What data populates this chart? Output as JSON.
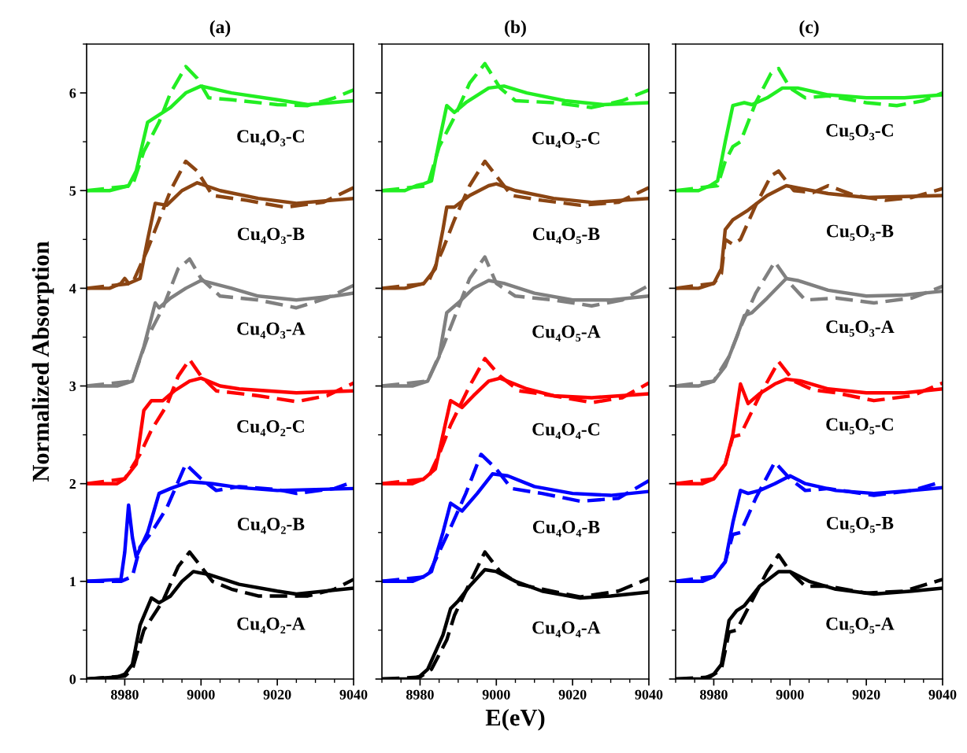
{
  "chart_data": [
    {
      "type": "line",
      "title": "(a)",
      "ylabel": "Normalized Absorption",
      "xlim": [
        8970,
        9040
      ],
      "xticks": [
        8980,
        9000,
        9020,
        9040
      ],
      "ylim": [
        0,
        6.5
      ],
      "yticks": [
        0,
        1,
        2,
        3,
        4,
        5,
        6
      ],
      "grid": false,
      "legend": false,
      "series": [
        {
          "name": "Cu₄O₂-A",
          "color": "#000000",
          "line_style": "solid",
          "x": [
            8970,
            8978,
            8980,
            8982,
            8984,
            8987,
            8989,
            8992,
            8995,
            8998,
            9002,
            9010,
            9020,
            9025,
            9040
          ],
          "values": [
            0,
            0.02,
            0.05,
            0.15,
            0.55,
            0.83,
            0.78,
            0.85,
            1.0,
            1.1,
            1.07,
            0.97,
            0.9,
            0.87,
            0.93
          ]
        },
        {
          "color": "#000000",
          "line_style": "dashed",
          "x": [
            8970,
            8980,
            8982,
            8985,
            8990,
            8994,
            8997,
            9000,
            9003,
            9008,
            9015,
            9028,
            9035,
            9040
          ],
          "values": [
            0,
            0.03,
            0.1,
            0.5,
            0.8,
            1.15,
            1.3,
            1.15,
            1.0,
            0.92,
            0.85,
            0.85,
            0.92,
            1.02
          ]
        },
        {
          "name": "Cu₄O₂-B",
          "color": "#0000ff",
          "line_style": "solid",
          "x": [
            8970,
            8979,
            8980,
            8981,
            8982,
            8983,
            8986,
            8989,
            8992,
            8997,
            9003,
            9010,
            9020,
            9040
          ],
          "values": [
            1,
            1.02,
            1.3,
            1.78,
            1.45,
            1.25,
            1.5,
            1.9,
            1.95,
            2.02,
            2.0,
            1.96,
            1.93,
            1.95
          ]
        },
        {
          "color": "#0000ff",
          "line_style": "dashed",
          "x": [
            8970,
            8979,
            8982,
            8984,
            8987,
            8991,
            8996,
            9000,
            9004,
            9010,
            9020,
            9025,
            9035,
            9040
          ],
          "values": [
            1,
            1.0,
            1.05,
            1.35,
            1.5,
            1.75,
            2.2,
            2.05,
            1.93,
            1.97,
            1.94,
            1.9,
            1.95,
            2.02
          ]
        },
        {
          "name": "Cu₄O₂-C",
          "color": "#ff0000",
          "line_style": "solid",
          "x": [
            8970,
            8978,
            8980,
            8983,
            8985,
            8987,
            8990,
            8993,
            8997,
            9000,
            9005,
            9010,
            9025,
            9040
          ],
          "values": [
            2,
            2.0,
            2.05,
            2.2,
            2.75,
            2.85,
            2.85,
            2.95,
            3.05,
            3.08,
            3.0,
            2.97,
            2.93,
            2.95
          ]
        },
        {
          "color": "#ff0000",
          "line_style": "dashed",
          "x": [
            8970,
            8980,
            8984,
            8987,
            8991,
            8994,
            8997,
            9000,
            9004,
            9015,
            9025,
            9033,
            9040
          ],
          "values": [
            2,
            2.05,
            2.3,
            2.55,
            2.8,
            3.1,
            3.27,
            3.1,
            2.95,
            2.9,
            2.84,
            2.9,
            3.03
          ]
        },
        {
          "name": "Cu₄O₃-A",
          "color": "#808080",
          "line_style": "solid",
          "x": [
            8970,
            8978,
            8982,
            8985,
            8988,
            8989,
            8992,
            8996,
            9000,
            9008,
            9015,
            9025,
            9035,
            9040
          ],
          "values": [
            3,
            3.0,
            3.05,
            3.4,
            3.85,
            3.8,
            3.9,
            4.0,
            4.08,
            4.0,
            3.92,
            3.88,
            3.92,
            3.95
          ]
        },
        {
          "color": "#808080",
          "line_style": "dashed",
          "x": [
            8970,
            8982,
            8986,
            8990,
            8994,
            8997,
            9000,
            9005,
            9015,
            9025,
            9033,
            9040
          ],
          "values": [
            3,
            3.05,
            3.5,
            3.8,
            4.2,
            4.3,
            4.1,
            3.92,
            3.88,
            3.8,
            3.9,
            4.03
          ]
        },
        {
          "name": "Cu₄O₃-B",
          "color": "#8b4513",
          "line_style": "solid",
          "x": [
            8970,
            8976,
            8979,
            8980,
            8981,
            8984,
            8986,
            8988,
            8991,
            8995,
            8999,
            9005,
            9015,
            9025,
            9040
          ],
          "values": [
            4,
            4.0,
            4.05,
            4.1,
            4.05,
            4.1,
            4.5,
            4.87,
            4.85,
            5.0,
            5.08,
            5.0,
            4.92,
            4.87,
            4.92
          ]
        },
        {
          "color": "#8b4513",
          "line_style": "dashed",
          "x": [
            8970,
            8982,
            8986,
            8989,
            8992,
            8996,
            8999,
            9003,
            9012,
            9022,
            9032,
            9040
          ],
          "values": [
            4,
            4.05,
            4.4,
            4.7,
            5.0,
            5.3,
            5.2,
            4.95,
            4.9,
            4.83,
            4.88,
            5.03
          ]
        },
        {
          "name": "Cu₄O₃-C",
          "color": "#22ee22",
          "line_style": "solid",
          "x": [
            8970,
            8976,
            8981,
            8983,
            8986,
            8988,
            8992,
            8996,
            9000,
            9008,
            9020,
            9028,
            9040
          ],
          "values": [
            5,
            5.0,
            5.05,
            5.2,
            5.7,
            5.75,
            5.85,
            6.0,
            6.07,
            6.0,
            5.93,
            5.88,
            5.92
          ]
        },
        {
          "color": "#22ee22",
          "line_style": "dashed",
          "x": [
            8970,
            8982,
            8985,
            8989,
            8992,
            8996,
            8999,
            9002,
            9008,
            9020,
            9028,
            9035,
            9040
          ],
          "values": [
            5,
            5.05,
            5.4,
            5.7,
            6.0,
            6.27,
            6.15,
            5.95,
            5.93,
            5.88,
            5.87,
            5.95,
            6.03
          ]
        }
      ]
    },
    {
      "type": "line",
      "title": "(b)",
      "xlabel": "E(eV)",
      "xlim": [
        8970,
        9040
      ],
      "xticks": [
        8980,
        9000,
        9020,
        9040
      ],
      "ylim": [
        0,
        6.5
      ],
      "yticks": [
        0,
        1,
        2,
        3,
        4,
        5,
        6
      ],
      "tick_labels": "x",
      "grid": false,
      "legend": false,
      "series": [
        {
          "name": "Cu₄O₄-A",
          "color": "#000000",
          "line_style": "solid",
          "x": [
            8970,
            8978,
            8980,
            8982,
            8986,
            8988,
            8990,
            8993,
            8997,
            9000,
            9005,
            9012,
            9022,
            9030,
            9040
          ],
          "values": [
            0,
            0.0,
            0.03,
            0.1,
            0.45,
            0.72,
            0.8,
            0.95,
            1.12,
            1.1,
            1.0,
            0.9,
            0.83,
            0.85,
            0.89
          ]
        },
        {
          "color": "#000000",
          "line_style": "dashed",
          "x": [
            8970,
            8980,
            8983,
            8987,
            8989,
            8992,
            8997,
            9001,
            9006,
            9012,
            9022,
            9032,
            9040
          ],
          "values": [
            0,
            0.02,
            0.1,
            0.4,
            0.65,
            0.9,
            1.3,
            1.1,
            0.97,
            0.92,
            0.84,
            0.9,
            1.03
          ]
        },
        {
          "name": "Cu₄O₄-B",
          "color": "#0000ff",
          "line_style": "solid",
          "x": [
            8970,
            8978,
            8981,
            8983,
            8986,
            8988,
            8991,
            8995,
            8999,
            9003,
            9010,
            9020,
            9030,
            9040
          ],
          "values": [
            1,
            1.0,
            1.05,
            1.1,
            1.5,
            1.8,
            1.72,
            1.9,
            2.1,
            2.08,
            1.97,
            1.9,
            1.88,
            1.92
          ]
        },
        {
          "color": "#0000ff",
          "line_style": "dashed",
          "x": [
            8970,
            8982,
            8985,
            8988,
            8992,
            8996,
            9000,
            9004,
            9012,
            9022,
            9032,
            9040
          ],
          "values": [
            1,
            1.05,
            1.3,
            1.55,
            1.9,
            2.3,
            2.15,
            1.95,
            1.9,
            1.82,
            1.85,
            2.03
          ]
        },
        {
          "name": "Cu₄O₄-C",
          "color": "#ff0000",
          "line_style": "solid",
          "x": [
            8970,
            8978,
            8981,
            8984,
            8986,
            8988,
            8991,
            8994,
            8998,
            9001,
            9008,
            9015,
            9025,
            9040
          ],
          "values": [
            2,
            2.0,
            2.05,
            2.15,
            2.5,
            2.85,
            2.78,
            2.9,
            3.05,
            3.08,
            2.97,
            2.9,
            2.88,
            2.92
          ]
        },
        {
          "color": "#ff0000",
          "line_style": "dashed",
          "x": [
            8970,
            8982,
            8985,
            8988,
            8993,
            8997,
            9001,
            9006,
            9015,
            9025,
            9033,
            9040
          ],
          "values": [
            2,
            2.05,
            2.3,
            2.6,
            3.0,
            3.28,
            3.1,
            2.95,
            2.9,
            2.83,
            2.88,
            3.03
          ]
        },
        {
          "name": "Cu₄O₅-A",
          "color": "#808080",
          "line_style": "solid",
          "x": [
            8970,
            8978,
            8982,
            8985,
            8987,
            8990,
            8994,
            8998,
            9002,
            9010,
            9020,
            9030,
            9040
          ],
          "values": [
            3,
            3.0,
            3.05,
            3.3,
            3.75,
            3.85,
            4.0,
            4.08,
            4.05,
            3.95,
            3.88,
            3.88,
            3.92
          ]
        },
        {
          "color": "#808080",
          "line_style": "dashed",
          "x": [
            8970,
            8982,
            8986,
            8989,
            8993,
            8997,
            9000,
            9005,
            9015,
            9025,
            9033,
            9040
          ],
          "values": [
            3,
            3.05,
            3.4,
            3.7,
            4.1,
            4.32,
            4.05,
            3.92,
            3.88,
            3.82,
            3.88,
            4.03
          ]
        },
        {
          "name": "Cu₄O₅-B",
          "color": "#8b4513",
          "line_style": "solid",
          "x": [
            8970,
            8976,
            8981,
            8984,
            8986,
            8987,
            8989,
            8993,
            8998,
            9000,
            9005,
            9015,
            9025,
            9040
          ],
          "values": [
            4,
            4.0,
            4.05,
            4.2,
            4.6,
            4.83,
            4.83,
            4.95,
            5.05,
            5.07,
            5.0,
            4.92,
            4.88,
            4.92
          ]
        },
        {
          "color": "#8b4513",
          "line_style": "dashed",
          "x": [
            8970,
            8982,
            8986,
            8989,
            8993,
            8997,
            9000,
            9004,
            9012,
            9022,
            9032,
            9040
          ],
          "values": [
            4,
            4.05,
            4.4,
            4.7,
            5.05,
            5.3,
            5.15,
            4.95,
            4.9,
            4.85,
            4.88,
            5.03
          ]
        },
        {
          "name": "Cu₄O₅-C",
          "color": "#22ee22",
          "line_style": "solid",
          "x": [
            8970,
            8976,
            8979,
            8981,
            8983,
            8985,
            8987,
            8989,
            8992,
            8998,
            9002,
            9008,
            9018,
            9028,
            9040
          ],
          "values": [
            5,
            5.0,
            5.05,
            5.07,
            5.1,
            5.5,
            5.87,
            5.8,
            5.9,
            6.05,
            6.07,
            6.0,
            5.92,
            5.88,
            5.9
          ]
        },
        {
          "color": "#22ee22",
          "line_style": "dashed",
          "x": [
            8970,
            8982,
            8985,
            8989,
            8993,
            8997,
            9001,
            9005,
            9015,
            9025,
            9033,
            9040
          ],
          "values": [
            5,
            5.05,
            5.45,
            5.75,
            6.1,
            6.3,
            6.05,
            5.92,
            5.9,
            5.85,
            5.92,
            6.03
          ]
        }
      ]
    },
    {
      "type": "line",
      "title": "(c)",
      "xlim": [
        8970,
        9040
      ],
      "xticks": [
        8980,
        9000,
        9020,
        9040
      ],
      "ylim": [
        0,
        6.5
      ],
      "yticks": [
        0,
        1,
        2,
        3,
        4,
        5,
        6
      ],
      "tick_labels": "x",
      "grid": false,
      "legend": false,
      "series": [
        {
          "name": "Cu₅O₅-A",
          "color": "#000000",
          "line_style": "solid",
          "x": [
            8970,
            8977,
            8980,
            8982,
            8984,
            8986,
            8988,
            8992,
            8997,
            9000,
            9005,
            9012,
            9022,
            9032,
            9040
          ],
          "values": [
            0,
            0.0,
            0.05,
            0.15,
            0.6,
            0.7,
            0.75,
            0.95,
            1.1,
            1.1,
            1.0,
            0.92,
            0.87,
            0.9,
            0.93
          ]
        },
        {
          "color": "#000000",
          "line_style": "dashed",
          "x": [
            8970,
            8979,
            8982,
            8984,
            8986,
            8990,
            8994,
            8997,
            9000,
            9004,
            9010,
            9020,
            9030,
            9040
          ],
          "values": [
            0,
            0.02,
            0.1,
            0.48,
            0.5,
            0.8,
            1.1,
            1.27,
            1.1,
            0.95,
            0.95,
            0.88,
            0.9,
            1.02
          ]
        },
        {
          "name": "Cu₅O₅-B",
          "color": "#0000ff",
          "line_style": "solid",
          "x": [
            8970,
            8977,
            8980,
            8983,
            8985,
            8987,
            8989,
            8992,
            8996,
            9000,
            9004,
            9012,
            9022,
            9032,
            9040
          ],
          "values": [
            1,
            1.0,
            1.05,
            1.2,
            1.6,
            1.93,
            1.9,
            1.93,
            2.0,
            2.08,
            2.0,
            1.93,
            1.9,
            1.93,
            1.96
          ]
        },
        {
          "color": "#0000ff",
          "line_style": "dashed",
          "x": [
            8970,
            8980,
            8983,
            8985,
            8987,
            8991,
            8996,
            9000,
            9004,
            9010,
            9022,
            9032,
            9040
          ],
          "values": [
            1,
            1.05,
            1.2,
            1.48,
            1.5,
            1.85,
            2.22,
            2.05,
            1.93,
            1.95,
            1.88,
            1.93,
            2.02
          ]
        },
        {
          "name": "Cu₅O₅-C",
          "color": "#ff0000",
          "line_style": "solid",
          "x": [
            8970,
            8977,
            8980,
            8983,
            8985,
            8987,
            8989,
            8992,
            8996,
            8999,
            9003,
            9010,
            9020,
            9030,
            9040
          ],
          "values": [
            2,
            2.0,
            2.05,
            2.2,
            2.5,
            3.02,
            2.82,
            2.92,
            3.02,
            3.07,
            3.05,
            2.97,
            2.93,
            2.93,
            2.97
          ]
        },
        {
          "color": "#ff0000",
          "line_style": "dashed",
          "x": [
            8970,
            8980,
            8983,
            8985,
            8987,
            8992,
            8997,
            9001,
            9006,
            9012,
            9022,
            9032,
            9040
          ],
          "values": [
            2,
            2.05,
            2.2,
            2.48,
            2.5,
            2.9,
            3.25,
            3.05,
            2.96,
            2.93,
            2.85,
            2.9,
            3.03
          ]
        },
        {
          "name": "Cu₅O₃-A",
          "color": "#808080",
          "line_style": "solid",
          "x": [
            8970,
            8976,
            8980,
            8983,
            8986,
            8988,
            8990,
            8994,
            8999,
            9002,
            9010,
            9020,
            9030,
            9040
          ],
          "values": [
            3,
            3.0,
            3.05,
            3.2,
            3.5,
            3.72,
            3.75,
            3.9,
            4.1,
            4.08,
            3.98,
            3.92,
            3.93,
            3.97
          ]
        },
        {
          "color": "#808080",
          "line_style": "dashed",
          "x": [
            8970,
            8980,
            8984,
            8987,
            8991,
            8996,
            9000,
            9004,
            9012,
            9022,
            9032,
            9040
          ],
          "values": [
            3,
            3.05,
            3.3,
            3.6,
            3.95,
            4.27,
            4.05,
            3.88,
            3.9,
            3.85,
            3.9,
            4.02
          ]
        },
        {
          "name": "Cu₅O₃-B",
          "color": "#8b4513",
          "line_style": "solid",
          "x": [
            8970,
            8976,
            8980,
            8982,
            8983,
            8985,
            8989,
            8994,
            8999,
            9003,
            9010,
            9020,
            9040
          ],
          "values": [
            4,
            4.0,
            4.05,
            4.2,
            4.6,
            4.7,
            4.8,
            4.95,
            5.05,
            5.02,
            4.97,
            4.93,
            4.95
          ]
        },
        {
          "color": "#8b4513",
          "line_style": "dashed",
          "x": [
            8970,
            8980,
            8982,
            8983,
            8985,
            8987,
            8991,
            8995,
            8997,
            9001,
            9006,
            9010,
            9017,
            9025,
            9032,
            9040
          ],
          "values": [
            4,
            4.05,
            4.15,
            4.5,
            4.45,
            4.5,
            4.85,
            5.15,
            5.2,
            5.0,
            4.98,
            5.05,
            4.95,
            4.9,
            4.93,
            5.02
          ]
        },
        {
          "name": "Cu₅O₃-C",
          "color": "#22ee22",
          "line_style": "solid",
          "x": [
            8970,
            8976,
            8979,
            8981,
            8983,
            8985,
            8988,
            8990,
            8994,
            8998,
            9002,
            9010,
            9020,
            9030,
            9040
          ],
          "values": [
            5,
            5.0,
            5.05,
            5.1,
            5.5,
            5.87,
            5.9,
            5.88,
            5.95,
            6.05,
            6.05,
            5.98,
            5.95,
            5.95,
            5.98
          ]
        },
        {
          "color": "#22ee22",
          "line_style": "dashed",
          "x": [
            8970,
            8981,
            8983,
            8985,
            8987,
            8991,
            8995,
            8997,
            9000,
            9004,
            9010,
            9020,
            9028,
            9035,
            9040
          ],
          "values": [
            5,
            5.05,
            5.3,
            5.45,
            5.5,
            5.9,
            6.2,
            6.25,
            6.05,
            5.95,
            5.97,
            5.9,
            5.87,
            5.92,
            6.0
          ]
        }
      ]
    }
  ]
}
